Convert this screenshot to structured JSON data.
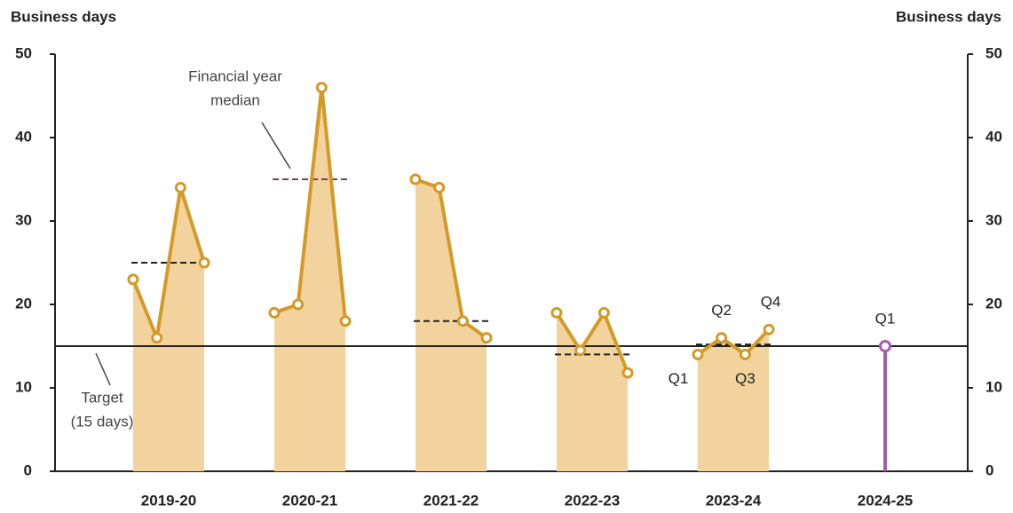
{
  "chart_data": {
    "type": "line",
    "ylabel": "Business days",
    "y2label": "Business days",
    "categories": [
      "2019-20",
      "2020-21",
      "2021-22",
      "2022-23",
      "2023-24",
      "2024-25"
    ],
    "quarterly_values": [
      [
        23,
        16,
        34,
        25
      ],
      [
        19,
        20,
        46,
        18
      ],
      [
        35,
        34,
        18,
        16
      ],
      [
        19,
        14.5,
        19,
        11.8
      ],
      [
        14,
        16,
        14,
        17
      ],
      [
        15
      ]
    ],
    "medians": [
      25,
      35,
      18,
      14,
      15.2,
      null
    ],
    "median_colors": [
      "#222222",
      "#7a3b78",
      "#222222",
      "#222222",
      "#222222",
      null
    ],
    "color": "#d49a28",
    "fill_color": "#f2d39e",
    "latest_color": "#a45bb0",
    "target": 15,
    "annotations": {
      "median": [
        "Financial year",
        "median"
      ],
      "target": [
        "Target",
        "(15 days)"
      ]
    },
    "quarter_labels": [
      "Q1",
      "Q2",
      "Q3",
      "Q4"
    ],
    "latest_label": "Q1",
    "ylim": [
      0,
      50
    ],
    "yticks": [
      0,
      10,
      20,
      30,
      40,
      50
    ],
    "y2lim": [
      0,
      50
    ],
    "y2ticks": [
      0,
      10,
      20,
      30,
      40,
      50
    ]
  }
}
